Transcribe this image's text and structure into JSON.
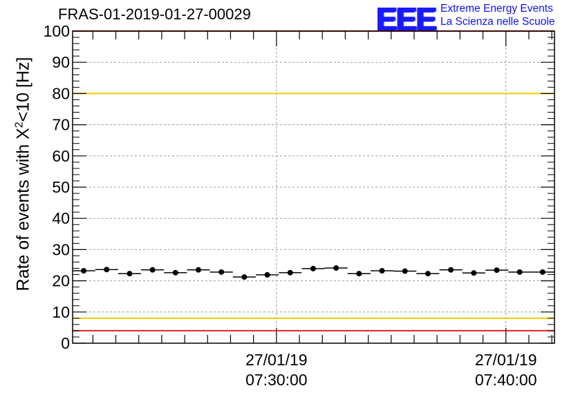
{
  "chart_data": {
    "type": "scatter",
    "title": "FRAS-01-2019-01-27-00029",
    "ylabel_prefix": "Rate of events with X",
    "ylabel_sup": "2",
    "ylabel_suffix": "<10 [Hz]",
    "xlabel": "",
    "ylim": [
      0,
      100
    ],
    "yticks": [
      "0",
      "10",
      "20",
      "30",
      "40",
      "50",
      "60",
      "70",
      "80",
      "90",
      "100"
    ],
    "xlim": [
      "07:21:07",
      "07:42:07"
    ],
    "xticks": [
      {
        "time": "07:30:00",
        "date_label": "27/01/19",
        "time_label": "07:30:00"
      },
      {
        "time": "07:40:00",
        "date_label": "27/01/19",
        "time_label": "07:40:00"
      }
    ],
    "grid": true,
    "series": [
      {
        "x": [
          "07:21:36",
          "07:22:36",
          "07:23:36",
          "07:24:36",
          "07:25:36",
          "07:26:36",
          "07:27:36",
          "07:28:36",
          "07:29:36",
          "07:30:36",
          "07:31:36",
          "07:32:36",
          "07:33:36",
          "07:34:36",
          "07:35:36",
          "07:36:36",
          "07:37:36",
          "07:38:36",
          "07:39:36",
          "07:40:36",
          "07:41:36"
        ],
        "y": [
          23.2,
          23.6,
          22.3,
          23.5,
          22.6,
          23.5,
          22.8,
          21.2,
          21.9,
          22.6,
          23.9,
          24.1,
          22.3,
          23.2,
          23.1,
          22.3,
          23.5,
          22.5,
          23.4,
          22.8,
          22.8
        ],
        "x_bin_width_minutes": 1
      }
    ],
    "reference_lines": [
      {
        "y": 80,
        "color": "#f2cc00"
      },
      {
        "y": 8,
        "color": "#f2cc00"
      },
      {
        "y": 100,
        "color": "#e0201a"
      },
      {
        "y": 4,
        "color": "#e0201a"
      }
    ]
  },
  "logo": {
    "mark": "EEE",
    "line1": "Extreme Energy Events",
    "line2": "La Scienza nelle Scuole"
  }
}
